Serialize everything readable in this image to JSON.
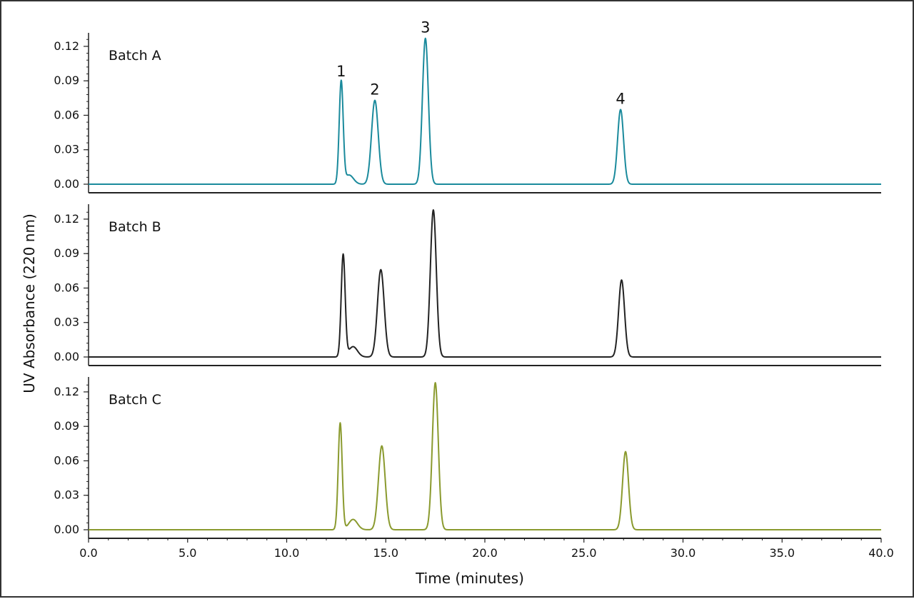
{
  "chart_data": {
    "type": "line",
    "xlabel": "Time (minutes)",
    "ylabel": "UV Absorbance (220 nm)",
    "xlim": [
      0,
      40
    ],
    "ylim": [
      -0.005,
      0.135
    ],
    "x_ticks": [
      "0.0",
      "5.0",
      "10.0",
      "15.0",
      "20.0",
      "25.0",
      "30.0",
      "35.0",
      "40.0"
    ],
    "y_ticks": [
      "0.00",
      "0.03",
      "0.06",
      "0.09",
      "0.12"
    ],
    "grid": false,
    "legend": "none",
    "panels": [
      {
        "label": "Batch A",
        "color": "#1a8a9c",
        "peaks": [
          {
            "rt": 12.75,
            "height": 0.089,
            "width": 0.1
          },
          {
            "rt": 13.15,
            "height": 0.008,
            "width": 0.22
          },
          {
            "rt": 14.45,
            "height": 0.073,
            "width": 0.17
          },
          {
            "rt": 17.0,
            "height": 0.127,
            "width": 0.15
          },
          {
            "rt": 26.85,
            "height": 0.065,
            "width": 0.15
          }
        ],
        "peak_labels": [
          {
            "text": "1",
            "rt": 12.75,
            "height": 0.089
          },
          {
            "text": "2",
            "rt": 14.45,
            "height": 0.073
          },
          {
            "text": "3",
            "rt": 17.0,
            "height": 0.127
          },
          {
            "text": "4",
            "rt": 26.85,
            "height": 0.065
          }
        ]
      },
      {
        "label": "Batch B",
        "color": "#222222",
        "peaks": [
          {
            "rt": 12.85,
            "height": 0.089,
            "width": 0.1
          },
          {
            "rt": 13.35,
            "height": 0.009,
            "width": 0.22
          },
          {
            "rt": 14.75,
            "height": 0.076,
            "width": 0.17
          },
          {
            "rt": 17.4,
            "height": 0.128,
            "width": 0.15
          },
          {
            "rt": 26.9,
            "height": 0.067,
            "width": 0.15
          }
        ],
        "peak_labels": []
      },
      {
        "label": "Batch C",
        "color": "#8a9a2e",
        "peaks": [
          {
            "rt": 12.7,
            "height": 0.093,
            "width": 0.1
          },
          {
            "rt": 13.35,
            "height": 0.009,
            "width": 0.22
          },
          {
            "rt": 14.8,
            "height": 0.073,
            "width": 0.17
          },
          {
            "rt": 17.5,
            "height": 0.128,
            "width": 0.15
          },
          {
            "rt": 27.1,
            "height": 0.068,
            "width": 0.15
          }
        ],
        "peak_labels": []
      }
    ]
  }
}
